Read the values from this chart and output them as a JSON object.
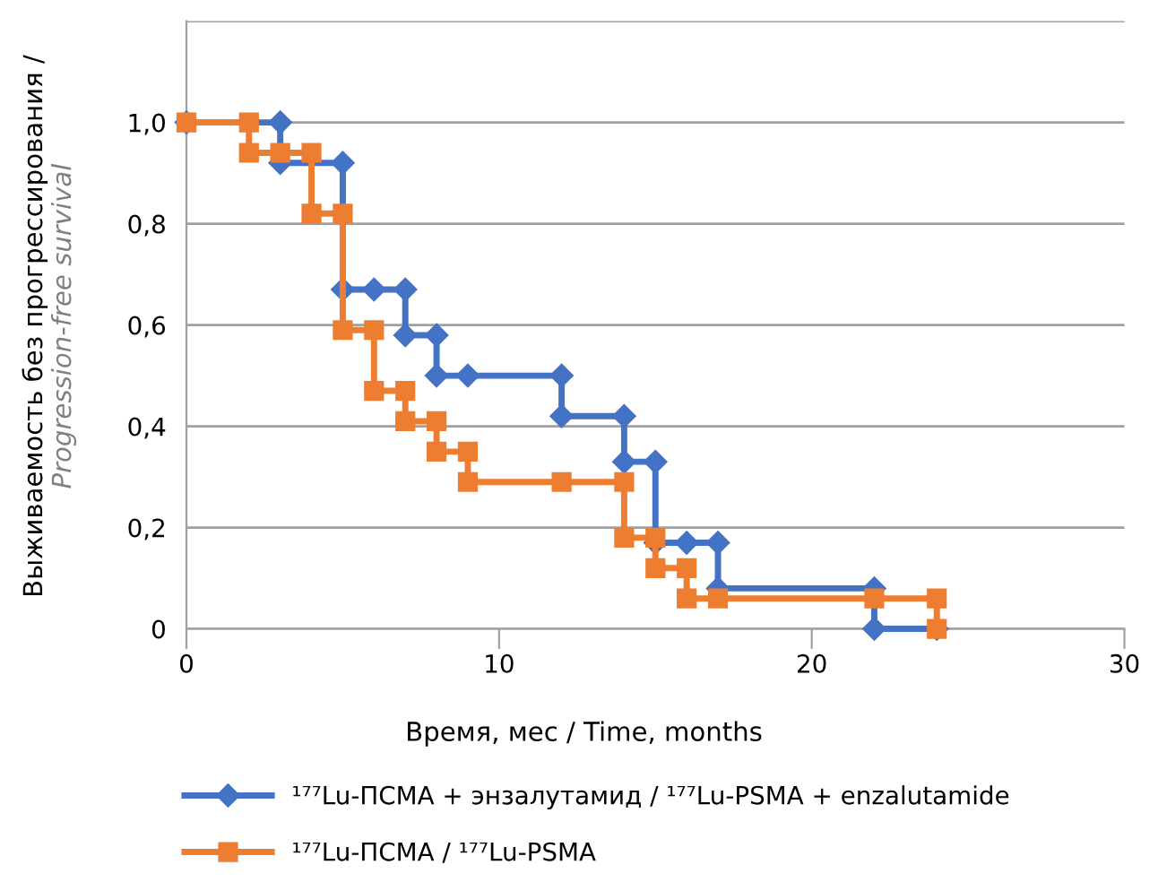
{
  "chart_data": {
    "type": "line",
    "xlabel": "Время, мес / Time, months",
    "ylabel": "Выживаемость без прогрессирования / Progression-free survival",
    "xlim": [
      0,
      30
    ],
    "xticks": [
      0,
      10,
      20,
      30
    ],
    "ylim": [
      0,
      1.2
    ],
    "yticks": [
      0,
      {
        "value": 0.2,
        "label": "0,2"
      },
      {
        "value": 0.4,
        "label": "0,4"
      },
      {
        "value": 0.6,
        "label": "0,6"
      },
      {
        "value": 0.8,
        "label": "0,8"
      },
      {
        "value": 1.0,
        "label": "1,0"
      },
      {
        "value": 1.2,
        "label": null
      }
    ],
    "grid": "y",
    "legend": "bottom",
    "series": [
      {
        "name": "¹⁷⁷Lu-ПСМА + энзалутамид / ¹⁷⁷Lu-PSMA + enzalutamide",
        "color": "#4472c4",
        "marker": "diamond",
        "x": [
          0,
          3,
          3,
          5,
          5,
          6,
          7,
          7,
          8,
          8,
          9,
          12,
          12,
          14,
          14,
          15,
          15,
          16,
          17,
          17,
          22,
          22,
          24
        ],
        "values": [
          1.0,
          1.0,
          0.92,
          0.92,
          0.67,
          0.67,
          0.67,
          0.58,
          0.58,
          0.5,
          0.5,
          0.5,
          0.42,
          0.42,
          0.33,
          0.33,
          0.17,
          0.17,
          0.17,
          0.08,
          0.08,
          0,
          0
        ]
      },
      {
        "name": "¹⁷⁷Lu-ПСМА / ¹⁷⁷Lu-PSMA",
        "color": "#ed7d31",
        "marker": "square",
        "x": [
          0,
          2,
          2,
          3,
          4,
          4,
          5,
          5,
          6,
          6,
          7,
          7,
          8,
          8,
          9,
          9,
          12,
          14,
          14,
          15,
          15,
          16,
          16,
          17,
          22,
          24,
          24
        ],
        "values": [
          1.0,
          1.0,
          0.94,
          0.94,
          0.94,
          0.82,
          0.82,
          0.59,
          0.59,
          0.47,
          0.47,
          0.41,
          0.41,
          0.35,
          0.35,
          0.29,
          0.29,
          0.29,
          0.18,
          0.18,
          0.12,
          0.12,
          0.06,
          0.06,
          0.06,
          0.06,
          0
        ]
      }
    ]
  }
}
